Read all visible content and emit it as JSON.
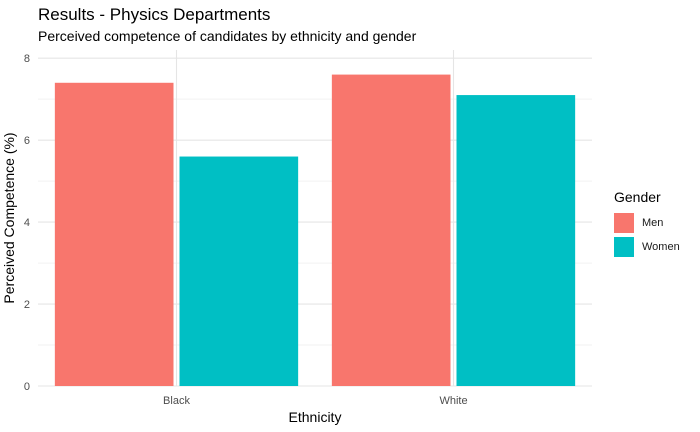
{
  "title": "Results - Physics Departments",
  "subtitle": "Perceived competence of candidates by ethnicity and gender",
  "chart_data": {
    "type": "bar",
    "title": "Results - Physics Departments",
    "subtitle": "Perceived competence of candidates by ethnicity and gender",
    "xlabel": "Ethnicity",
    "ylabel": "Perceived Competence (%)",
    "categories": [
      "Black",
      "White"
    ],
    "series": [
      {
        "name": "Men",
        "color": "#f8766d",
        "values": [
          7.4,
          7.6
        ]
      },
      {
        "name": "Women",
        "color": "#00bfc4",
        "values": [
          5.6,
          7.1
        ]
      }
    ],
    "ylim": [
      0,
      8.2
    ],
    "yticks": [
      0,
      2,
      4,
      6,
      8
    ],
    "grid": true,
    "legend": {
      "title": "Gender",
      "position": "right"
    }
  }
}
